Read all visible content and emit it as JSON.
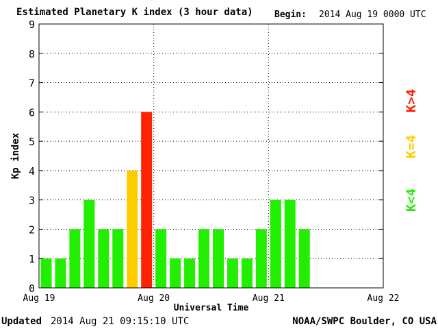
{
  "header": {
    "title": "Estimated Planetary K index (3 hour data)",
    "begin_label": "Begin:",
    "begin_value": "2014 Aug 19 0000 UTC"
  },
  "footer": {
    "updated_label": "Updated",
    "updated_value": "2014 Aug 21 09:15:10 UTC",
    "credit": "NOAA/SWPC Boulder, CO USA"
  },
  "legend": {
    "low": "K<4",
    "mid": "K=4",
    "high": "K>4"
  },
  "colors": {
    "low": "#22ee00",
    "mid": "#ffcc00",
    "high": "#ff2200",
    "grid": "#000000",
    "background": "#ffffff"
  },
  "chart_data": {
    "type": "bar",
    "title": "Estimated Planetary K index (3 hour data)",
    "xlabel": "Universal Time",
    "ylabel": "Kp index",
    "ylim": [
      0,
      9
    ],
    "y_ticks": [
      "0",
      "1",
      "2",
      "3",
      "4",
      "5",
      "6",
      "7",
      "8",
      "9"
    ],
    "x_ticks": [
      "Aug 19",
      "Aug 20",
      "Aug 21",
      "Aug 22"
    ],
    "grid": true,
    "interval_hours": 3,
    "values": [
      1,
      1,
      2,
      3,
      2,
      2,
      4,
      6,
      2,
      1,
      1,
      2,
      2,
      1,
      1,
      2,
      3,
      3,
      2
    ]
  }
}
